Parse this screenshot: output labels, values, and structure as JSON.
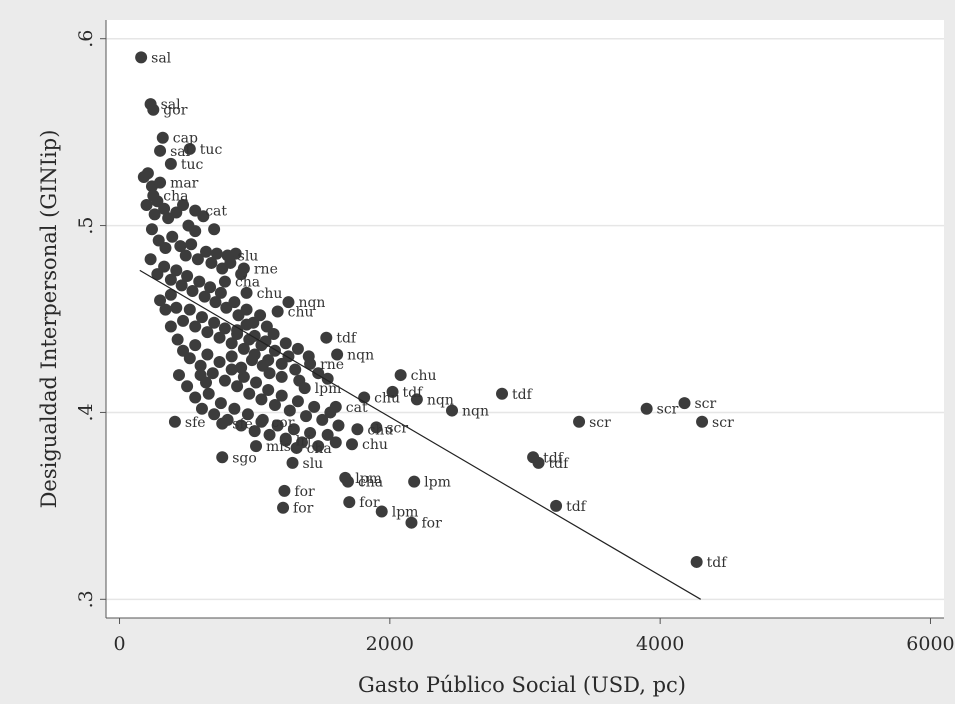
{
  "colors": {
    "outer_background": "#ebebeb",
    "plot_background": "#ffffff",
    "grid": "#e6e6e6",
    "marker": "#3c3c3c",
    "fit_line": "#222222",
    "text": "#2a2a2a"
  },
  "chart_data": {
    "type": "scatter",
    "title": "",
    "xlabel": "Gasto Público Social (USD, pc)",
    "ylabel": "Desigualdad Interpersonal (GINIip)",
    "xlim": [
      -100,
      6100
    ],
    "ylim": [
      0.29,
      0.61
    ],
    "xticks": [
      0,
      2000,
      4000,
      6000
    ],
    "xtick_labels": [
      "0",
      "2000",
      "4000",
      "6000"
    ],
    "yticks": [
      0.3,
      0.4,
      0.5,
      0.6
    ],
    "ytick_labels": [
      ".3",
      ".4",
      ".5",
      ".6"
    ],
    "grid": true,
    "legend": "none",
    "fit_line": {
      "x": [
        150,
        4300
      ],
      "y": [
        0.476,
        0.3
      ]
    },
    "labeled_points": [
      {
        "x": 160,
        "y": 0.59,
        "label": "sal"
      },
      {
        "x": 230,
        "y": 0.565,
        "label": "sal"
      },
      {
        "x": 250,
        "y": 0.562,
        "label": "gor"
      },
      {
        "x": 320,
        "y": 0.547,
        "label": "cap"
      },
      {
        "x": 520,
        "y": 0.541,
        "label": "tuc"
      },
      {
        "x": 300,
        "y": 0.54,
        "label": "sal"
      },
      {
        "x": 380,
        "y": 0.533,
        "label": "tuc"
      },
      {
        "x": 300,
        "y": 0.523,
        "label": "mar"
      },
      {
        "x": 250,
        "y": 0.516,
        "label": "cha"
      },
      {
        "x": 560,
        "y": 0.508,
        "label": "cat"
      },
      {
        "x": 800,
        "y": 0.484,
        "label": "slu"
      },
      {
        "x": 920,
        "y": 0.477,
        "label": "rne"
      },
      {
        "x": 780,
        "y": 0.47,
        "label": "cha"
      },
      {
        "x": 940,
        "y": 0.464,
        "label": "chu"
      },
      {
        "x": 1250,
        "y": 0.459,
        "label": "nqn"
      },
      {
        "x": 1170,
        "y": 0.454,
        "label": "chu"
      },
      {
        "x": 1530,
        "y": 0.44,
        "label": "tdf"
      },
      {
        "x": 1610,
        "y": 0.431,
        "label": "nqn"
      },
      {
        "x": 1410,
        "y": 0.426,
        "label": "rne"
      },
      {
        "x": 2080,
        "y": 0.42,
        "label": "chu"
      },
      {
        "x": 1370,
        "y": 0.413,
        "label": "lpm"
      },
      {
        "x": 2830,
        "y": 0.41,
        "label": "tdf"
      },
      {
        "x": 2020,
        "y": 0.411,
        "label": "tdf"
      },
      {
        "x": 1810,
        "y": 0.408,
        "label": "chu"
      },
      {
        "x": 2200,
        "y": 0.407,
        "label": "nqn"
      },
      {
        "x": 2460,
        "y": 0.401,
        "label": "nqn"
      },
      {
        "x": 1600,
        "y": 0.403,
        "label": "cat"
      },
      {
        "x": 3400,
        "y": 0.395,
        "label": "scr"
      },
      {
        "x": 3900,
        "y": 0.402,
        "label": "scr"
      },
      {
        "x": 4180,
        "y": 0.405,
        "label": "scr"
      },
      {
        "x": 4310,
        "y": 0.395,
        "label": "scr"
      },
      {
        "x": 410,
        "y": 0.395,
        "label": "sfe"
      },
      {
        "x": 760,
        "y": 0.394,
        "label": "sfe"
      },
      {
        "x": 1050,
        "y": 0.395,
        "label": "cor"
      },
      {
        "x": 1900,
        "y": 0.392,
        "label": "scr"
      },
      {
        "x": 1760,
        "y": 0.391,
        "label": "chu"
      },
      {
        "x": 1720,
        "y": 0.383,
        "label": "chu"
      },
      {
        "x": 1310,
        "y": 0.381,
        "label": "cha"
      },
      {
        "x": 1010,
        "y": 0.382,
        "label": "mis"
      },
      {
        "x": 1230,
        "y": 0.385,
        "label": "lrj"
      },
      {
        "x": 760,
        "y": 0.376,
        "label": "sgo"
      },
      {
        "x": 1280,
        "y": 0.373,
        "label": "slu"
      },
      {
        "x": 3060,
        "y": 0.376,
        "label": "tdf"
      },
      {
        "x": 3100,
        "y": 0.373,
        "label": "tdf"
      },
      {
        "x": 1670,
        "y": 0.365,
        "label": "lpm"
      },
      {
        "x": 1690,
        "y": 0.363,
        "label": "cha"
      },
      {
        "x": 2180,
        "y": 0.363,
        "label": "lpm"
      },
      {
        "x": 1220,
        "y": 0.358,
        "label": "for"
      },
      {
        "x": 1700,
        "y": 0.352,
        "label": "for"
      },
      {
        "x": 1210,
        "y": 0.349,
        "label": "for"
      },
      {
        "x": 1940,
        "y": 0.347,
        "label": "lpm"
      },
      {
        "x": 2160,
        "y": 0.341,
        "label": "for"
      },
      {
        "x": 3230,
        "y": 0.35,
        "label": "tdf"
      },
      {
        "x": 4270,
        "y": 0.32,
        "label": "tdf"
      }
    ],
    "extra_points": [
      [
        180,
        0.526
      ],
      [
        210,
        0.528
      ],
      [
        240,
        0.521
      ],
      [
        280,
        0.513
      ],
      [
        330,
        0.509
      ],
      [
        200,
        0.511
      ],
      [
        260,
        0.506
      ],
      [
        360,
        0.504
      ],
      [
        420,
        0.507
      ],
      [
        470,
        0.511
      ],
      [
        510,
        0.5
      ],
      [
        620,
        0.505
      ],
      [
        560,
        0.497
      ],
      [
        700,
        0.498
      ],
      [
        240,
        0.498
      ],
      [
        290,
        0.492
      ],
      [
        340,
        0.488
      ],
      [
        390,
        0.494
      ],
      [
        450,
        0.489
      ],
      [
        490,
        0.484
      ],
      [
        530,
        0.49
      ],
      [
        580,
        0.482
      ],
      [
        640,
        0.486
      ],
      [
        680,
        0.48
      ],
      [
        720,
        0.485
      ],
      [
        760,
        0.477
      ],
      [
        820,
        0.48
      ],
      [
        860,
        0.485
      ],
      [
        900,
        0.474
      ],
      [
        230,
        0.482
      ],
      [
        280,
        0.474
      ],
      [
        330,
        0.478
      ],
      [
        380,
        0.471
      ],
      [
        420,
        0.476
      ],
      [
        460,
        0.468
      ],
      [
        500,
        0.473
      ],
      [
        540,
        0.465
      ],
      [
        590,
        0.47
      ],
      [
        630,
        0.462
      ],
      [
        670,
        0.467
      ],
      [
        710,
        0.459
      ],
      [
        750,
        0.464
      ],
      [
        790,
        0.456
      ],
      [
        850,
        0.459
      ],
      [
        880,
        0.452
      ],
      [
        940,
        0.455
      ],
      [
        990,
        0.448
      ],
      [
        1040,
        0.452
      ],
      [
        1090,
        0.446
      ],
      [
        300,
        0.46
      ],
      [
        340,
        0.455
      ],
      [
        380,
        0.463
      ],
      [
        420,
        0.456
      ],
      [
        470,
        0.449
      ],
      [
        520,
        0.455
      ],
      [
        560,
        0.446
      ],
      [
        610,
        0.451
      ],
      [
        650,
        0.443
      ],
      [
        700,
        0.448
      ],
      [
        740,
        0.44
      ],
      [
        780,
        0.445
      ],
      [
        830,
        0.437
      ],
      [
        870,
        0.442
      ],
      [
        920,
        0.434
      ],
      [
        960,
        0.439
      ],
      [
        1000,
        0.431
      ],
      [
        1050,
        0.436
      ],
      [
        1100,
        0.428
      ],
      [
        1150,
        0.433
      ],
      [
        1200,
        0.426
      ],
      [
        1250,
        0.43
      ],
      [
        1300,
        0.423
      ],
      [
        380,
        0.446
      ],
      [
        430,
        0.439
      ],
      [
        470,
        0.433
      ],
      [
        520,
        0.429
      ],
      [
        560,
        0.436
      ],
      [
        600,
        0.425
      ],
      [
        650,
        0.431
      ],
      [
        690,
        0.421
      ],
      [
        740,
        0.427
      ],
      [
        780,
        0.417
      ],
      [
        830,
        0.423
      ],
      [
        870,
        0.414
      ],
      [
        920,
        0.419
      ],
      [
        960,
        0.41
      ],
      [
        1010,
        0.416
      ],
      [
        1050,
        0.407
      ],
      [
        1100,
        0.412
      ],
      [
        1150,
        0.404
      ],
      [
        1200,
        0.409
      ],
      [
        1260,
        0.401
      ],
      [
        1320,
        0.406
      ],
      [
        1380,
        0.398
      ],
      [
        1440,
        0.403
      ],
      [
        1500,
        0.396
      ],
      [
        1560,
        0.4
      ],
      [
        1620,
        0.393
      ],
      [
        440,
        0.42
      ],
      [
        500,
        0.414
      ],
      [
        560,
        0.408
      ],
      [
        610,
        0.402
      ],
      [
        660,
        0.41
      ],
      [
        700,
        0.399
      ],
      [
        750,
        0.405
      ],
      [
        800,
        0.396
      ],
      [
        850,
        0.402
      ],
      [
        900,
        0.393
      ],
      [
        950,
        0.399
      ],
      [
        1000,
        0.39
      ],
      [
        1060,
        0.396
      ],
      [
        1110,
        0.388
      ],
      [
        1170,
        0.393
      ],
      [
        1230,
        0.386
      ],
      [
        1290,
        0.391
      ],
      [
        1350,
        0.384
      ],
      [
        1410,
        0.389
      ],
      [
        1470,
        0.382
      ],
      [
        1540,
        0.388
      ],
      [
        1600,
        0.384
      ],
      [
        870,
        0.444
      ],
      [
        940,
        0.447
      ],
      [
        1000,
        0.441
      ],
      [
        1080,
        0.438
      ],
      [
        1140,
        0.442
      ],
      [
        1230,
        0.437
      ],
      [
        1320,
        0.434
      ],
      [
        1400,
        0.43
      ],
      [
        1470,
        0.421
      ],
      [
        1540,
        0.418
      ],
      [
        1330,
        0.417
      ],
      [
        1200,
        0.419
      ],
      [
        1110,
        0.421
      ],
      [
        1060,
        0.425
      ],
      [
        980,
        0.428
      ],
      [
        900,
        0.424
      ],
      [
        830,
        0.43
      ],
      [
        640,
        0.416
      ],
      [
        600,
        0.42
      ]
    ]
  }
}
